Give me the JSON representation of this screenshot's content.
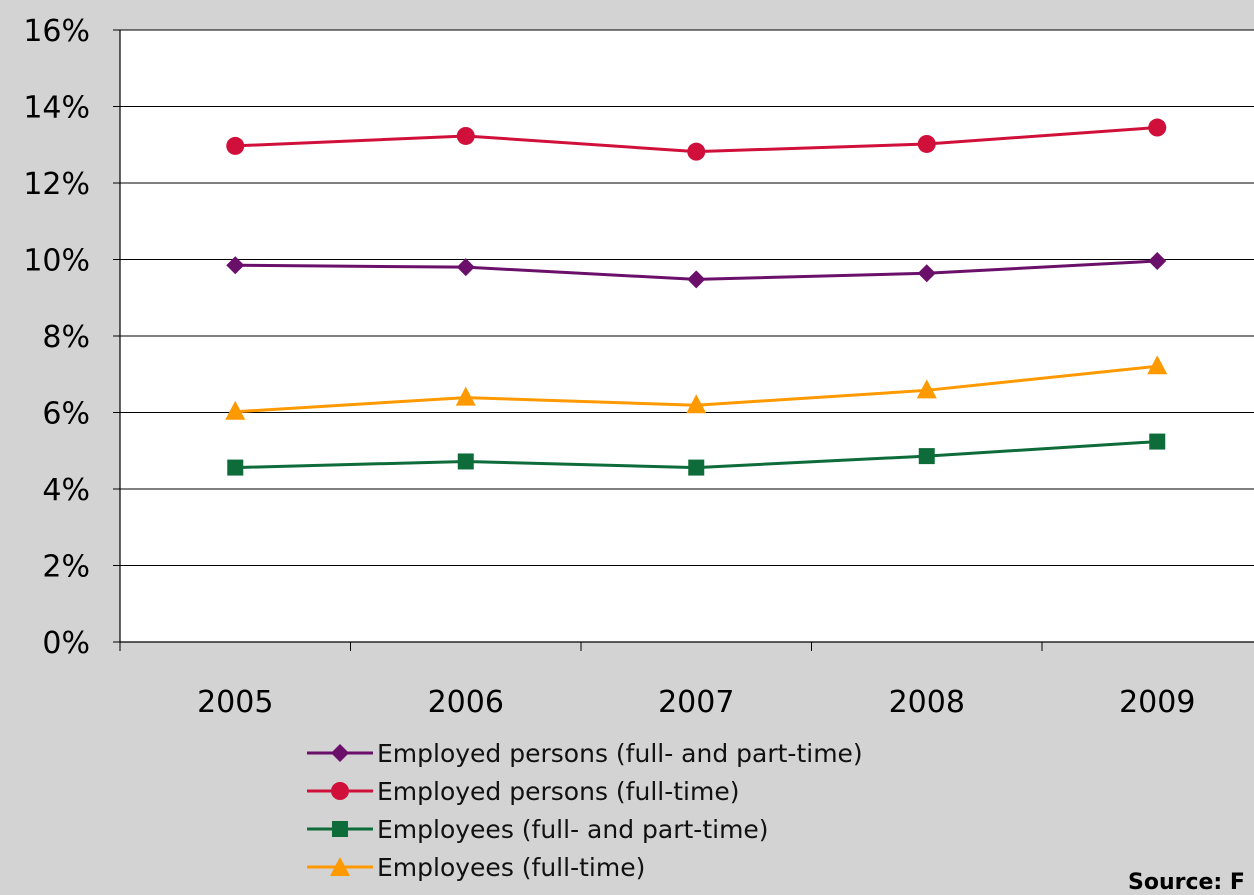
{
  "chart_data": {
    "type": "line",
    "categories": [
      "2005",
      "2006",
      "2007",
      "2008",
      "2009"
    ],
    "y_ticks": [
      "0%",
      "2%",
      "4%",
      "6%",
      "8%",
      "10%",
      "12%",
      "14%",
      "16%"
    ],
    "ylim": [
      0,
      16
    ],
    "grid": true,
    "legend_position": "bottom",
    "series": [
      {
        "name": "Employed persons (full- and part-time)",
        "values": [
          9.85,
          9.8,
          9.48,
          9.64,
          9.96
        ],
        "color": "#6a0f6a",
        "marker": "diamond"
      },
      {
        "name": "Employed persons (full-time)",
        "values": [
          12.97,
          13.23,
          12.82,
          13.02,
          13.45
        ],
        "color": "#d0103a",
        "marker": "circle"
      },
      {
        "name": "Employees (full- and part-time)",
        "values": [
          4.56,
          4.72,
          4.56,
          4.86,
          5.24
        ],
        "color": "#0e6b3a",
        "marker": "square"
      },
      {
        "name": "Employees (full-time)",
        "values": [
          6.02,
          6.39,
          6.19,
          6.58,
          7.21
        ],
        "color": "#ff9900",
        "marker": "triangle"
      }
    ]
  },
  "source": "Source: F"
}
